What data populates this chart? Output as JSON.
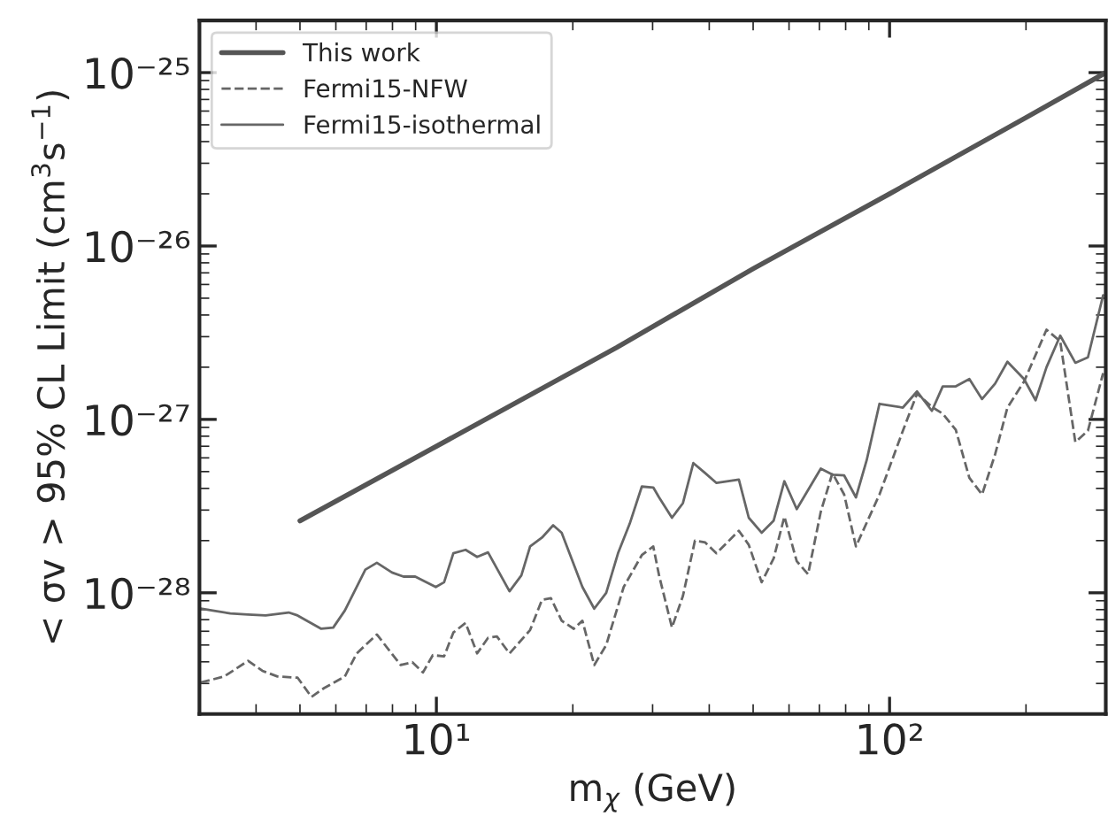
{
  "chart_data": {
    "type": "line",
    "xlabel": "m$_{χ}$ (GeV)",
    "ylabel": "< σv > 95% CL Limit (cm$^{3}$s$^{−1}$)",
    "log": "xy",
    "grid": false,
    "legend": "top left",
    "marker": "none",
    "xlim": [
      3,
      300
    ],
    "ylim": [
      2e-29,
      2e-25
    ],
    "xticks": [
      {
        "value": 10,
        "label": "10¹"
      },
      {
        "value": 100,
        "label": "10²"
      }
    ],
    "yticks": [
      {
        "value": 1e-28,
        "label": "10⁻²⁸"
      },
      {
        "value": 1e-27,
        "label": "10⁻²⁷"
      },
      {
        "value": 1e-26,
        "label": "10⁻²⁶"
      },
      {
        "value": 1e-25,
        "label": "10⁻²⁵"
      }
    ],
    "series": [
      {
        "name": "This work",
        "color": "#555555",
        "line_style": "solid",
        "x": [
          5,
          10,
          25,
          50,
          100,
          200,
          300
        ],
        "values": [
          2.6e-28,
          7e-28,
          2.6e-27,
          7.4e-27,
          2e-26,
          5.5e-26,
          1e-25
        ]
      },
      {
        "name": "Fermi15-NFW",
        "color": "#666666",
        "line_style": "dashed",
        "x": [
          3.02,
          3.4,
          3.84,
          4.13,
          4.46,
          4.94,
          5.3,
          5.65,
          6.28,
          6.67,
          7.39,
          8.34,
          8.85,
          9.34,
          9.82,
          10.4,
          10.9,
          11.6,
          12.3,
          13.0,
          13.6,
          14.5,
          16.1,
          17.1,
          17.9,
          18.9,
          20.1,
          21.0,
          22.3,
          23.7,
          25.9,
          28.4,
          30.1,
          31.0,
          33.1,
          35.0,
          37.2,
          39.2,
          41.5,
          46.5,
          48.9,
          52.2,
          55.5,
          58.6,
          62.4,
          66.1,
          70.5,
          74.8,
          79.4,
          84.3,
          95.0,
          107,
          115,
          124,
          131,
          140,
          150,
          160,
          171,
          182,
          198,
          222,
          238,
          257,
          274,
          296
        ],
        "values": [
          3.04e-29,
          3.29e-29,
          4.05e-29,
          3.55e-29,
          3.29e-29,
          3.24e-29,
          2.51e-29,
          2.82e-29,
          3.29e-29,
          4.47e-29,
          5.75e-29,
          3.83e-29,
          3.98e-29,
          3.47e-29,
          4.37e-29,
          4.3e-29,
          5.9e-29,
          6.7e-29,
          4.47e-29,
          5.5e-29,
          5.6e-29,
          4.47e-29,
          6.1e-29,
          9.1e-29,
          9.3e-29,
          6.9e-29,
          6.2e-29,
          6.9e-29,
          3.83e-29,
          5e-29,
          1.08e-28,
          1.65e-28,
          1.85e-28,
          1.26e-28,
          6.3e-29,
          9.6e-29,
          2e-28,
          1.95e-28,
          1.69e-28,
          2.28e-28,
          1.89e-28,
          1.15e-28,
          1.58e-28,
          2.75e-28,
          1.52e-28,
          1.28e-28,
          2.93e-28,
          4.9e-28,
          3.69e-28,
          1.85e-28,
          3.69e-28,
          8.6e-28,
          1.41e-27,
          1.18e-27,
          1.08e-27,
          8.7e-28,
          4.6e-28,
          3.69e-28,
          6.3e-28,
          1.17e-27,
          1.65e-27,
          3.29e-27,
          2.82e-27,
          7.4e-28,
          8.6e-28,
          1.85e-27
        ]
      },
      {
        "name": "Fermi15-isothermal",
        "color": "#666666",
        "line_style": "solid",
        "x": [
          3.02,
          3.21,
          3.51,
          3.84,
          4.2,
          4.72,
          4.94,
          5.57,
          5.92,
          6.28,
          6.97,
          7.39,
          7.98,
          8.46,
          8.98,
          9.97,
          10.4,
          10.9,
          11.6,
          12.3,
          13.0,
          14.5,
          15.4,
          16.1,
          17.1,
          18.1,
          18.9,
          21.0,
          22.3,
          23.7,
          25.2,
          26.7,
          28.4,
          30.1,
          31.0,
          33.1,
          35.0,
          36.9,
          39.2,
          41.5,
          46.5,
          48.9,
          52.2,
          55.5,
          58.6,
          62.4,
          70.5,
          74.8,
          79.4,
          84.3,
          89.0,
          95.0,
          107,
          115,
          124,
          131,
          140,
          150,
          160,
          171,
          182,
          198,
          210,
          222,
          238,
          257,
          274,
          296
        ],
        "values": [
          8.1e-29,
          7.9e-29,
          7.6e-29,
          7.5e-29,
          7.4e-29,
          7.7e-29,
          7.4e-29,
          6.2e-29,
          6.3e-29,
          7.9e-29,
          1.36e-28,
          1.49e-28,
          1.31e-28,
          1.24e-28,
          1.24e-28,
          1.08e-28,
          1.15e-28,
          1.69e-28,
          1.77e-28,
          1.61e-28,
          1.71e-28,
          1.02e-28,
          1.26e-28,
          1.85e-28,
          2.08e-28,
          2.45e-28,
          2.22e-28,
          1.08e-28,
          8.1e-29,
          1e-28,
          1.71e-28,
          2.5e-28,
          4.1e-28,
          4.05e-28,
          3.55e-28,
          2.71e-28,
          3.29e-28,
          5.6e-28,
          4.9e-28,
          4.3e-28,
          4.5e-28,
          2.71e-28,
          2.22e-28,
          2.61e-28,
          4.4e-28,
          3.04e-28,
          5.2e-28,
          4.8e-28,
          4.75e-28,
          3.55e-28,
          5.8e-28,
          1.23e-27,
          1.17e-27,
          1.45e-27,
          1.12e-27,
          1.55e-27,
          1.55e-27,
          1.71e-27,
          1.31e-27,
          1.61e-27,
          2.15e-27,
          1.71e-27,
          1.29e-27,
          2e-27,
          3.04e-27,
          2.12e-27,
          2.28e-27,
          5.2e-27
        ]
      }
    ]
  }
}
